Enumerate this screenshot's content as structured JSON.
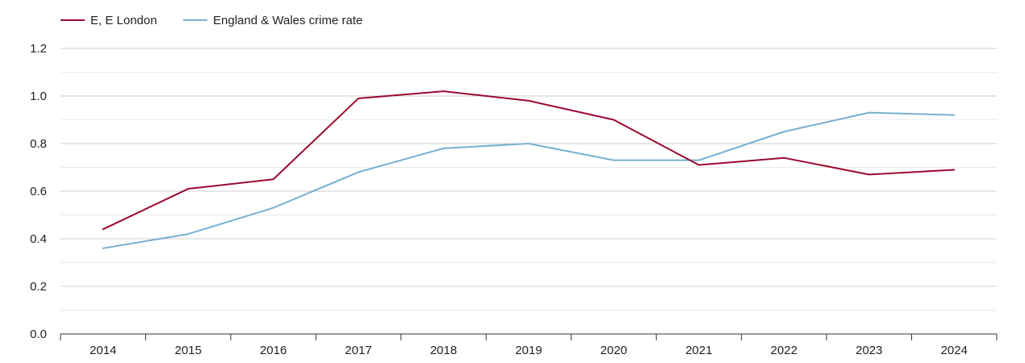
{
  "chart_data": {
    "type": "line",
    "title": "",
    "xlabel": "",
    "ylabel": "",
    "categories": [
      "2014",
      "2015",
      "2016",
      "2017",
      "2018",
      "2019",
      "2020",
      "2021",
      "2022",
      "2023",
      "2024"
    ],
    "ylim": [
      0,
      1.2
    ],
    "yticks": [
      "0.0",
      "0.2",
      "0.4",
      "0.6",
      "0.8",
      "1.0",
      "1.2"
    ],
    "grid": true,
    "legend_position": "top-left",
    "series": [
      {
        "name": "E, E London",
        "color": "#9b0a2f",
        "values": [
          0.44,
          0.61,
          0.65,
          0.99,
          1.02,
          0.98,
          0.9,
          0.71,
          0.74,
          0.67,
          0.69
        ]
      },
      {
        "name": "England & Wales crime rate",
        "color": "#77b0d1",
        "values": [
          0.36,
          0.42,
          0.53,
          0.68,
          0.78,
          0.8,
          0.73,
          0.73,
          0.85,
          0.93,
          0.92
        ]
      }
    ]
  }
}
